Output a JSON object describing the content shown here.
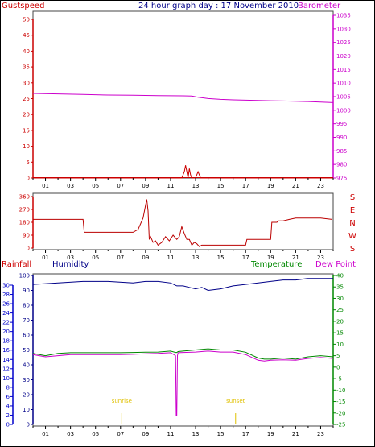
{
  "header": {
    "left_label": "Gustspeed",
    "title": "24 hour graph day : 17 November 2010",
    "right_label": "Barometer"
  },
  "wind_dir_labels": [
    "S",
    "E",
    "N",
    "W",
    "S"
  ],
  "lower_header": {
    "rainfall": "Rainfall",
    "humidity": "Humidity",
    "temperature": "Temperature",
    "dewpoint": "Dew Point"
  },
  "annotations": {
    "sunrise": "sunrise",
    "sunset": "sunset"
  },
  "colors": {
    "gust": "#cc0000",
    "barometer": "#cc00cc",
    "direction": "#bb0000",
    "humidity": "#000088",
    "temperature": "#008800",
    "dewpoint": "#cc00cc",
    "rainfall_axis": "#0000cc",
    "sun": "#e0c000"
  },
  "chart_data": [
    {
      "type": "line",
      "x_ticks": [
        "01",
        "03",
        "05",
        "07",
        "09",
        "11",
        "13",
        "15",
        "17",
        "19",
        "21",
        "23"
      ],
      "y_ticks_left": [
        0,
        5,
        10,
        15,
        20,
        25,
        30,
        35,
        40,
        45,
        50
      ],
      "y_ticks_right": [
        975,
        980,
        985,
        990,
        995,
        1000,
        1005,
        1010,
        1015,
        1020,
        1025,
        1030,
        1035
      ],
      "ylim_left": [
        0,
        50
      ],
      "ylim_right": [
        975,
        1035
      ],
      "grid": false,
      "series": [
        {
          "name": "Barometer",
          "axis": "right",
          "x": [
            0,
            2,
            4,
            6,
            8,
            10,
            12,
            12.7,
            13.2,
            14,
            15,
            16,
            17,
            18,
            19,
            20,
            21,
            22,
            23,
            24
          ],
          "values": [
            1006.2,
            1006.0,
            1005.8,
            1005.6,
            1005.5,
            1005.4,
            1005.3,
            1005.2,
            1004.8,
            1004.3,
            1004.0,
            1003.8,
            1003.7,
            1003.6,
            1003.5,
            1003.4,
            1003.3,
            1003.2,
            1003.0,
            1002.8
          ]
        },
        {
          "name": "Gustspeed",
          "axis": "left",
          "x": [
            0,
            11.9,
            12.0,
            12.1,
            12.2,
            12.3,
            12.4,
            12.5,
            12.6,
            12.7,
            12.8,
            13.0,
            13.2,
            13.3,
            13.4,
            13.5,
            24
          ],
          "values": [
            0,
            0,
            1,
            2,
            4,
            2,
            0,
            3,
            1,
            0,
            0,
            0,
            2,
            1,
            0,
            0,
            0
          ]
        }
      ]
    },
    {
      "type": "line",
      "x_ticks": [
        "01",
        "03",
        "05",
        "07",
        "09",
        "11",
        "13",
        "15",
        "17",
        "19",
        "21",
        "23"
      ],
      "y_ticks": [
        0,
        90,
        180,
        270,
        360
      ],
      "ylim": [
        0,
        360
      ],
      "series": [
        {
          "name": "Wind Direction",
          "x": [
            0,
            4,
            4.1,
            8,
            8.4,
            8.8,
            9,
            9.1,
            9.2,
            9.3,
            9.4,
            9.6,
            9.8,
            10,
            10.3,
            10.6,
            10.9,
            11.2,
            11.5,
            11.7,
            11.9,
            12.1,
            12.3,
            12.5,
            12.7,
            12.9,
            13.1,
            13.3,
            13.5,
            14,
            17,
            17.1,
            19,
            19.1,
            19.5,
            19.6,
            20,
            20.5,
            21,
            22,
            23,
            23.9
          ],
          "values": [
            200,
            200,
            110,
            110,
            130,
            210,
            300,
            340,
            260,
            60,
            80,
            40,
            50,
            20,
            40,
            80,
            50,
            90,
            60,
            80,
            150,
            100,
            60,
            60,
            20,
            40,
            30,
            10,
            20,
            20,
            20,
            60,
            60,
            180,
            180,
            190,
            190,
            200,
            210,
            210,
            210,
            200
          ]
        }
      ]
    },
    {
      "type": "line",
      "x_ticks": [
        "01",
        "03",
        "05",
        "07",
        "09",
        "11",
        "13",
        "15",
        "17",
        "19",
        "21",
        "23"
      ],
      "y_ticks_left": [
        0,
        2,
        4,
        6,
        8,
        10,
        12,
        14,
        16,
        18,
        20,
        22,
        24,
        26,
        28,
        30
      ],
      "y_ticks_humidity": [
        0,
        10,
        20,
        30,
        40,
        50,
        60,
        70,
        80,
        90,
        100
      ],
      "y_ticks_right": [
        -25,
        -20,
        -15,
        -10,
        -5,
        0,
        5,
        10,
        15,
        20,
        25,
        30,
        35,
        40
      ],
      "ylim_rainfall": [
        0,
        30
      ],
      "ylim_humidity": [
        0,
        100
      ],
      "ylim_temp": [
        -25,
        40
      ],
      "series": [
        {
          "name": "Humidity",
          "axis": "humidity",
          "x": [
            0,
            2,
            4,
            6,
            8,
            9,
            10,
            11,
            11.5,
            12,
            12.5,
            13,
            13.5,
            14,
            15,
            16,
            17,
            18,
            19,
            20,
            21,
            22,
            23,
            24
          ],
          "values": [
            94,
            95,
            96,
            96,
            95,
            96,
            96,
            95,
            93,
            93,
            92,
            91,
            92,
            90,
            91,
            93,
            94,
            95,
            96,
            97,
            97,
            98,
            98,
            98
          ]
        },
        {
          "name": "Temperature",
          "axis": "temp",
          "x": [
            0,
            1,
            2,
            3,
            4,
            5,
            6,
            7,
            8,
            9,
            10,
            11,
            11.4,
            11.5,
            11.6,
            12,
            13,
            14,
            15,
            16,
            17,
            18,
            18.5,
            19,
            20,
            21,
            22,
            23,
            24
          ],
          "values": [
            6.0,
            5.0,
            6.0,
            6.3,
            6.3,
            6.3,
            6.3,
            6.3,
            6.4,
            6.5,
            6.6,
            7.0,
            6.4,
            6.4,
            6.8,
            7.0,
            7.5,
            8.0,
            7.5,
            7.5,
            6.5,
            4.0,
            3.5,
            3.5,
            4.0,
            3.5,
            4.5,
            5.0,
            4.5
          ]
        },
        {
          "name": "Dew Point",
          "axis": "temp",
          "x": [
            0,
            1,
            2,
            3,
            4,
            5,
            6,
            7,
            8,
            9,
            10,
            11,
            11.4,
            11.45,
            11.5,
            11.55,
            11.6,
            12,
            13,
            14,
            15,
            16,
            17,
            18,
            18.5,
            19,
            20,
            21,
            22,
            23,
            24
          ],
          "values": [
            5.5,
            4.5,
            5.0,
            5.5,
            5.5,
            5.5,
            5.5,
            5.5,
            5.6,
            5.8,
            6.0,
            6.3,
            5.0,
            -21.0,
            -21.0,
            5.0,
            6.3,
            6.4,
            6.6,
            7.0,
            6.6,
            6.6,
            5.5,
            3.0,
            2.7,
            3.0,
            3.2,
            3.0,
            3.8,
            4.2,
            3.8
          ]
        }
      ],
      "annotations": [
        {
          "label": "sunrise",
          "x": 7.1
        },
        {
          "label": "sunset",
          "x": 16.2
        }
      ]
    }
  ]
}
